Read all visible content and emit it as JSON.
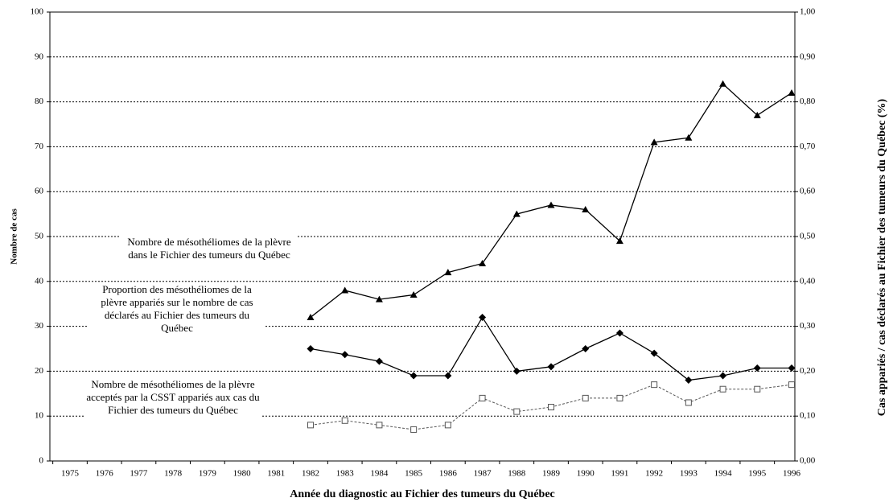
{
  "chart_data": {
    "type": "line",
    "x_label": "Année du diagnostic au Fichier des tumeurs du Québec",
    "y_label": "Nombre de cas",
    "y2_label": "Cas appariés / cas déclarés au Fichier des tumeurs du Québec (%)",
    "categories": [
      "1975",
      "1976",
      "1977",
      "1978",
      "1979",
      "1980",
      "1981",
      "1982",
      "1983",
      "1984",
      "1985",
      "1986",
      "1987",
      "1988",
      "1989",
      "1990",
      "1991",
      "1992",
      "1993",
      "1994",
      "1995",
      "1996"
    ],
    "ylim": [
      0,
      100
    ],
    "yticks": [
      0,
      10,
      20,
      30,
      40,
      50,
      60,
      70,
      80,
      90,
      100
    ],
    "y2lim": [
      0,
      1
    ],
    "y2ticks": [
      {
        "value": 0,
        "label": "0,00"
      },
      {
        "value": 0.1,
        "label": "0,10"
      },
      {
        "value": 0.2,
        "label": "0,20"
      },
      {
        "value": 0.3,
        "label": "0,30"
      },
      {
        "value": 0.4,
        "label": "0,40"
      },
      {
        "value": 0.5,
        "label": "0,50"
      },
      {
        "value": 0.6,
        "label": "0,60"
      },
      {
        "value": 0.7,
        "label": "0,70"
      },
      {
        "value": 0.8,
        "label": "0,80"
      },
      {
        "value": 0.9,
        "label": "0,90"
      },
      {
        "value": 1,
        "label": "1,00"
      }
    ],
    "grid": true,
    "series": [
      {
        "name": "Nombre de mésothéliomes de la plèvre dans le Fichier des tumeurs du Québec",
        "color": "#000000",
        "marker": "triangle",
        "dashed": false,
        "values": [
          null,
          null,
          null,
          null,
          null,
          null,
          null,
          32,
          38,
          36,
          37,
          42,
          44,
          55,
          57,
          56,
          49,
          71,
          72,
          84,
          77,
          82
        ]
      },
      {
        "name": "Proportion des mésothéliomes de la plèvre appariés sur le nombre de cas déclarés au Fichier des tumeurs du Québec",
        "color": "#000000",
        "marker": "diamond",
        "dashed": false,
        "axis": "y2",
        "values": [
          null,
          null,
          null,
          null,
          null,
          null,
          null,
          0.25,
          0.237,
          0.222,
          0.19,
          0.19,
          0.32,
          0.2,
          0.21,
          0.25,
          0.285,
          0.24,
          0.18,
          0.19,
          0.207,
          0.207
        ]
      },
      {
        "name": "Nombre de mésothéliomes de la plèvre acceptés par la CSST appariés aux cas du Fichier des tumeurs du Québec",
        "color": "#555555",
        "marker": "square",
        "dashed": true,
        "values": [
          null,
          null,
          null,
          null,
          null,
          null,
          null,
          8,
          9,
          8,
          7,
          8,
          14,
          11,
          12,
          14,
          14,
          17,
          13,
          16,
          16,
          17
        ]
      }
    ]
  }
}
